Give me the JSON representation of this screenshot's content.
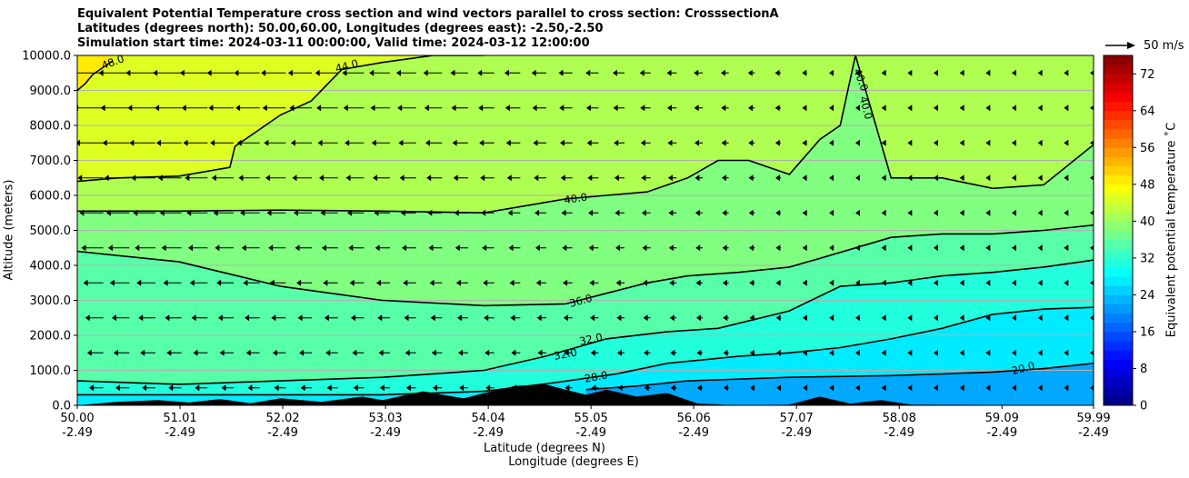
{
  "chart_data": {
    "type": "heatmap",
    "title_lines": [
      "Equivalent Potential Temperature cross section and wind vectors parallel to cross section: CrosssectionA",
      "Latitudes (degrees north): 50.00,60.00, Longitudes (degrees east): -2.50,-2.50",
      "Simulation start time: 2024-03-11 00:00:00, Valid time: 2024-03-12 12:00:00"
    ],
    "xlabel_lat": "Latitude (degrees N)",
    "xlabel_lon": "Longitude (degrees E)",
    "ylabel": "Altitude (meters)",
    "xlim": [
      50.0,
      59.99
    ],
    "ylim": [
      0,
      10000
    ],
    "grid": "horizontal",
    "x_ticks": [
      {
        "lat": "50.00",
        "lon": "-2.49"
      },
      {
        "lat": "51.01",
        "lon": "-2.49"
      },
      {
        "lat": "52.02",
        "lon": "-2.49"
      },
      {
        "lat": "53.03",
        "lon": "-2.49"
      },
      {
        "lat": "54.04",
        "lon": "-2.49"
      },
      {
        "lat": "55.05",
        "lon": "-2.49"
      },
      {
        "lat": "56.06",
        "lon": "-2.49"
      },
      {
        "lat": "57.07",
        "lon": "-2.49"
      },
      {
        "lat": "58.08",
        "lon": "-2.49"
      },
      {
        "lat": "59.09",
        "lon": "-2.49"
      },
      {
        "lat": "59.99",
        "lon": "-2.49"
      }
    ],
    "y_ticks": [
      "0.0",
      "1000.0",
      "2000.0",
      "3000.0",
      "4000.0",
      "5000.0",
      "6000.0",
      "7000.0",
      "8000.0",
      "9000.0",
      "10000.0"
    ],
    "colorbar": {
      "label": "Equivalent potential temperature ˚C",
      "min": 0,
      "max": 76,
      "step": 2,
      "tick_labels": [
        "0",
        "8",
        "16",
        "24",
        "32",
        "40",
        "48",
        "56",
        "64",
        "72"
      ]
    },
    "contour_labels": [
      "48.0",
      "44.0",
      "40.0",
      "40.0",
      "40.0",
      "36.0",
      "32.0",
      "32.0",
      "28.0",
      "20.0"
    ],
    "reference_vector": {
      "value": 50,
      "label": "50 m/s"
    },
    "series": [
      {
        "name": "contour 48.0",
        "x": [
          50.0,
          50.08,
          50.15,
          50.25,
          50.35
        ],
        "y": [
          9000,
          9200,
          9450,
          9650,
          9850
        ]
      },
      {
        "name": "contour 44.0",
        "x": [
          50.0,
          50.4,
          51.0,
          51.5,
          51.55,
          52.0,
          52.3,
          52.6,
          53.0,
          53.5,
          54.0
        ],
        "y": [
          6400,
          6500,
          6550,
          6800,
          7400,
          8300,
          8700,
          9600,
          9800,
          10000,
          10000
        ]
      },
      {
        "name": "contour 40.0",
        "x": [
          50.0,
          51.0,
          52.0,
          53.0,
          54.0,
          54.8,
          55.2,
          55.6,
          56.0,
          56.3,
          56.6,
          57.0,
          57.3,
          57.5,
          57.65,
          58.0,
          58.5,
          59.0,
          59.5,
          59.99
        ],
        "y": [
          5550,
          5550,
          5580,
          5550,
          5500,
          5900,
          6000,
          6100,
          6500,
          7000,
          7000,
          6600,
          7600,
          8000,
          10000,
          6500,
          6500,
          6200,
          6300,
          7450
        ]
      },
      {
        "name": "contour 36.0",
        "x": [
          50.0,
          51.0,
          52.0,
          53.0,
          54.0,
          54.8,
          55.2,
          55.6,
          56.0,
          56.5,
          57.0,
          57.3,
          58.0,
          58.5,
          59.0,
          59.5,
          59.99
        ],
        "y": [
          4400,
          4100,
          3400,
          3000,
          2850,
          2900,
          3200,
          3500,
          3700,
          3800,
          3950,
          4200,
          4800,
          4900,
          4900,
          5000,
          5150
        ]
      },
      {
        "name": "contour 32.0",
        "x": [
          50.0,
          51.0,
          52.0,
          53.0,
          53.5,
          54.0,
          54.6,
          55.2,
          55.8,
          56.3,
          57.0,
          57.5,
          58.0,
          58.5,
          59.0,
          59.5,
          59.99
        ],
        "y": [
          700,
          600,
          700,
          800,
          900,
          1000,
          1400,
          1900,
          2100,
          2200,
          2700,
          3400,
          3500,
          3700,
          3800,
          3950,
          4150
        ]
      },
      {
        "name": "contour 28.0",
        "x": [
          50.0,
          51.0,
          52.0,
          53.0,
          54.0,
          54.7,
          55.3,
          55.8,
          56.5,
          57.0,
          57.5,
          58.0,
          58.5,
          59.0,
          59.5,
          59.99
        ],
        "y": [
          300,
          300,
          300,
          300,
          400,
          650,
          900,
          1200,
          1400,
          1500,
          1650,
          1900,
          2200,
          2600,
          2750,
          2800
        ]
      },
      {
        "name": "contour 20.0",
        "x": [
          55.0,
          55.5,
          56.0,
          57.0,
          58.0,
          58.5,
          59.0,
          59.5,
          59.99
        ],
        "y": [
          450,
          550,
          700,
          800,
          850,
          900,
          950,
          1050,
          1200
        ]
      }
    ],
    "terrain": {
      "x": [
        50.0,
        50.4,
        50.8,
        51.1,
        51.4,
        51.7,
        52.0,
        52.4,
        52.8,
        53.0,
        53.4,
        53.8,
        54.0,
        54.3,
        54.6,
        54.8,
        55.0,
        55.2,
        55.5,
        55.8,
        56.1,
        56.5,
        57.0,
        57.3,
        57.6,
        57.9,
        58.2,
        59.99
      ],
      "y": [
        0,
        100,
        150,
        80,
        180,
        60,
        200,
        100,
        250,
        150,
        400,
        200,
        350,
        550,
        600,
        450,
        300,
        450,
        250,
        350,
        50,
        0,
        20,
        250,
        50,
        150,
        20,
        0
      ]
    }
  }
}
